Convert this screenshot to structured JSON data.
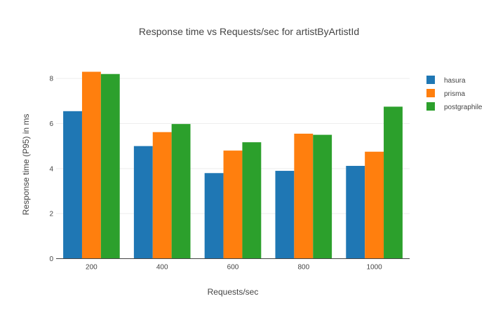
{
  "chart_data": {
    "type": "bar",
    "title": "Response time vs Requests/sec for artistByArtistId",
    "xlabel": "Requests/sec",
    "ylabel": "Response time (P95) in ms",
    "categories": [
      "200",
      "400",
      "600",
      "800",
      "1000"
    ],
    "ylim": [
      0,
      9
    ],
    "yticks": [
      0,
      2,
      4,
      6,
      8
    ],
    "grid": true,
    "legend_position": "top-right",
    "series": [
      {
        "name": "hasura",
        "color": "#1f77b4",
        "values": [
          6.55,
          5.0,
          3.8,
          3.9,
          4.12
        ]
      },
      {
        "name": "prisma",
        "color": "#ff7f0e",
        "values": [
          8.3,
          5.62,
          4.8,
          5.55,
          4.75
        ]
      },
      {
        "name": "postgraphile",
        "color": "#2ca02c",
        "values": [
          8.2,
          5.98,
          5.17,
          5.5,
          6.75
        ]
      }
    ]
  }
}
